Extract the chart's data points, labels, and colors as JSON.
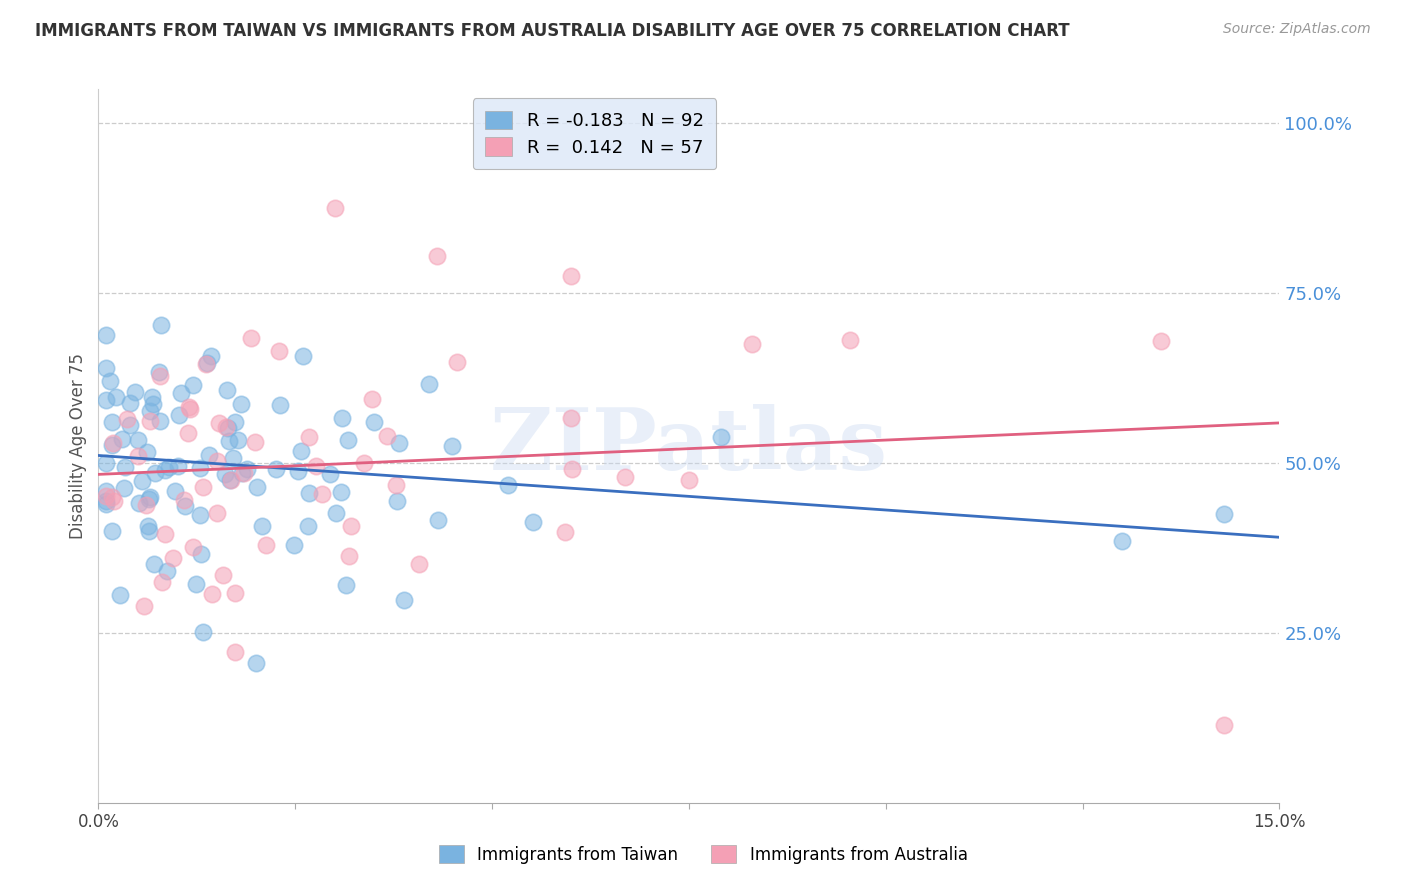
{
  "title": "IMMIGRANTS FROM TAIWAN VS IMMIGRANTS FROM AUSTRALIA DISABILITY AGE OVER 75 CORRELATION CHART",
  "source": "Source: ZipAtlas.com",
  "ylabel": "Disability Age Over 75",
  "xlim": [
    0.0,
    0.15
  ],
  "ylim": [
    0.0,
    1.05
  ],
  "taiwan_R": -0.183,
  "taiwan_N": 92,
  "australia_R": 0.142,
  "australia_N": 57,
  "taiwan_color": "#7ab3e0",
  "australia_color": "#f4a0b5",
  "taiwan_line_color": "#3a6fbf",
  "australia_line_color": "#e06080",
  "watermark": "ZIPatlas",
  "background_color": "#ffffff",
  "grid_color": "#cccccc",
  "title_color": "#333333",
  "right_axis_color": "#4a90d9",
  "legend_facecolor": "#dde8f8",
  "right_ytick_positions": [
    0.25,
    0.5,
    0.75,
    1.0
  ],
  "right_ytick_labels": [
    "25.0%",
    "50.0%",
    "75.0%",
    "100.0%"
  ],
  "xtick_positions": [
    0.0,
    0.025,
    0.05,
    0.075,
    0.1,
    0.125,
    0.15
  ],
  "xtick_labels": [
    "0.0%",
    "",
    "",
    "",
    "",
    "",
    "15.0%"
  ],
  "tw_intercept": 0.495,
  "tw_slope": -0.38,
  "au_intercept": 0.455,
  "au_slope": 0.85
}
